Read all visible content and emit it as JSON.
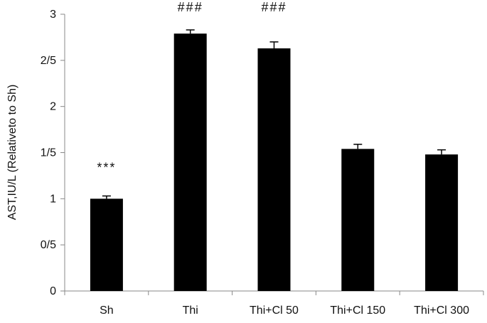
{
  "chart_data": {
    "type": "bar",
    "title": "",
    "xlabel": "",
    "ylabel": "AST,IU/L (Relativeto to Sh)",
    "ylim": [
      0,
      3
    ],
    "yticks": [
      {
        "value": 0,
        "label": "0"
      },
      {
        "value": 0.5,
        "label": "0/5"
      },
      {
        "value": 1,
        "label": "1"
      },
      {
        "value": 1.5,
        "label": "1/5"
      },
      {
        "value": 2,
        "label": "2"
      },
      {
        "value": 2.5,
        "label": "2/5"
      },
      {
        "value": 3,
        "label": "3"
      }
    ],
    "categories": [
      "Sh",
      "Thi",
      "Thi+Cl 50",
      "Thi+Cl 150",
      "Thi+Cl 300"
    ],
    "values": [
      1.0,
      2.79,
      2.63,
      1.54,
      1.48
    ],
    "errors": [
      0.03,
      0.04,
      0.07,
      0.05,
      0.05
    ],
    "annotations": [
      "***",
      "###",
      "###",
      "",
      ""
    ],
    "grid": false,
    "bar_color": "#000000"
  }
}
